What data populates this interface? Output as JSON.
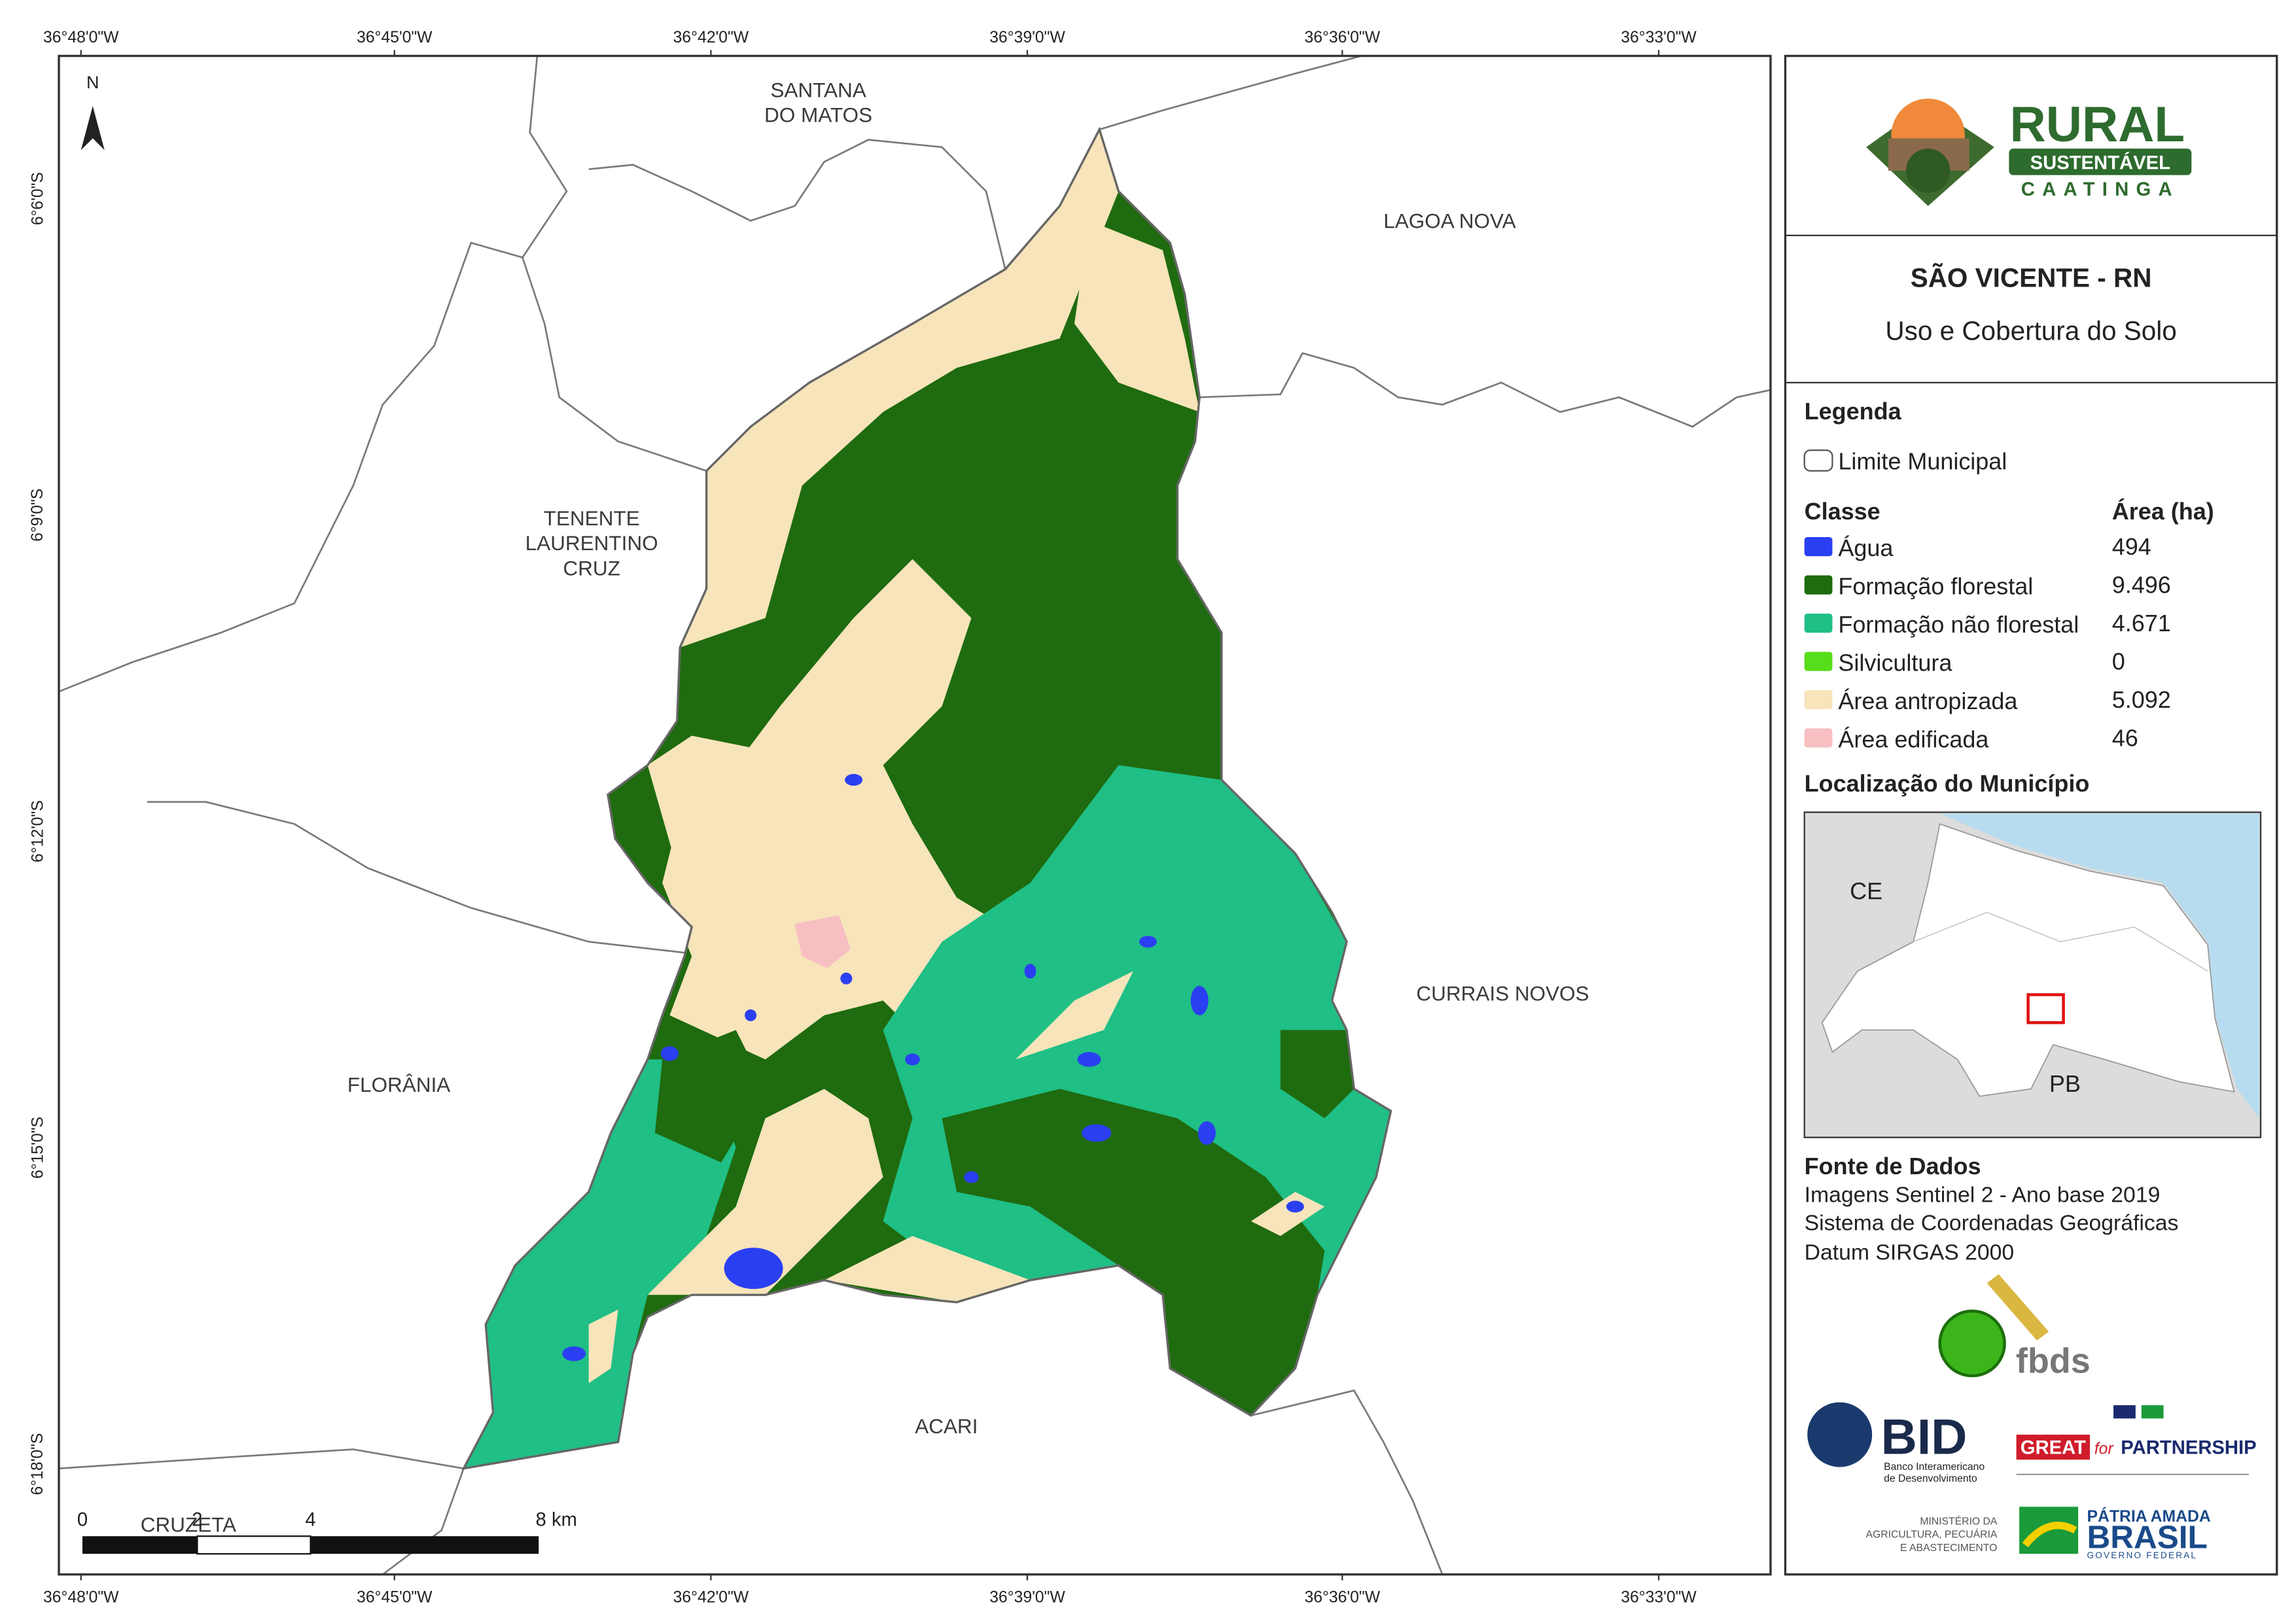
{
  "map": {
    "top_coordinates": [
      "36°48'0\"W",
      "36°45'0\"W",
      "36°42'0\"W",
      "36°39'0\"W",
      "36°36'0\"W",
      "36°33'0\"W"
    ],
    "bottom_coordinates": [
      "36°48'0\"W",
      "36°45'0\"W",
      "36°42'0\"W",
      "36°39'0\"W",
      "36°36'0\"W",
      "36°33'0\"W"
    ],
    "left_coordinates": [
      "6°6'0\"S",
      "6°9'0\"S",
      "6°12'0\"S",
      "6°15'0\"S",
      "6°18'0\"S"
    ],
    "north": "N",
    "places": [
      [
        "SANTANA",
        "DO MATOS"
      ],
      [
        "LAGOA NOVA"
      ],
      [
        "TENENTE",
        "LAURENTINO",
        "CRUZ"
      ],
      [
        "CURRAIS NOVOS"
      ],
      [
        "FLORÂNIA"
      ],
      [
        "ACARI"
      ],
      [
        "CRUZETA"
      ]
    ],
    "scale": [
      "0",
      "2",
      "4",
      "8 km"
    ]
  },
  "panel": {
    "logo": {
      "title": "RURAL",
      "subtitle": "SUSTENTÁVEL",
      "tagline": "CAATINGA"
    },
    "title": "SÃO VICENTE - RN",
    "subtitle": "Uso e Cobertura do Solo",
    "legend": {
      "heading": "Legenda",
      "boundary": "Limite Municipal",
      "class_header": "Classe",
      "area_header": "Área (ha)",
      "classes": [
        {
          "name": "Água",
          "area": "494",
          "color": "#2b3ff2"
        },
        {
          "name": "Formação florestal",
          "area": "9.496",
          "color": "#1f6b0f"
        },
        {
          "name": "Formação não florestal",
          "area": "4.671",
          "color": "#1fbf85"
        },
        {
          "name": "Silvicultura",
          "area": "0",
          "color": "#57dd1a"
        },
        {
          "name": "Área antropizada",
          "area": "5.092",
          "color": "#f7e4bb"
        },
        {
          "name": "Área edificada",
          "area": "46",
          "color": "#f7bfc2"
        }
      ]
    },
    "location": {
      "heading": "Localização do Município",
      "labels": [
        "CE",
        "PB"
      ]
    },
    "sources": {
      "heading": "Fonte de Dados",
      "lines": [
        "Imagens Sentinel 2 - Ano base 2019",
        "Sistema de Coordenadas Geográficas",
        "Datum SIRGAS 2000"
      ]
    },
    "logos": {
      "fbds": "fbds",
      "bid": "BID",
      "bid_name": [
        "Banco Interamericano",
        "de Desenvolvimento"
      ],
      "great": "GREAT",
      "great_for": "for",
      "partnership": "PARTNERSHIP",
      "ministry": [
        "MINISTÉRIO DA",
        "AGRICULTURA, PECUÁRIA",
        "E ABASTECIMENTO"
      ],
      "brasil_top": "PÁTRIA AMADA",
      "brasil": "BRASIL",
      "governo": "GOVERNO FEDERAL"
    }
  }
}
